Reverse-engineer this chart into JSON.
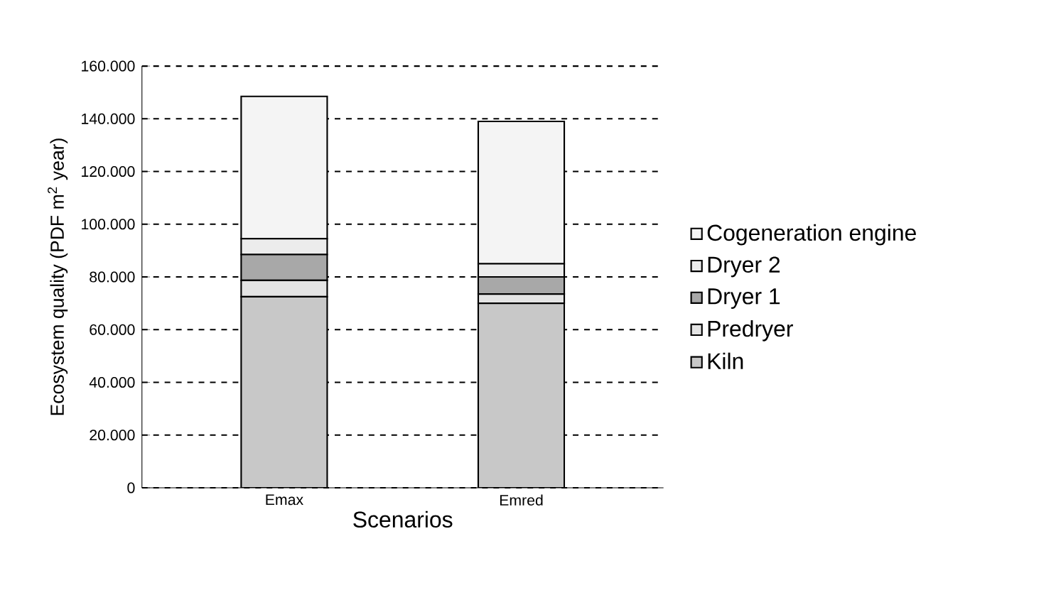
{
  "chart_data": {
    "type": "bar",
    "stacked": true,
    "xlabel": "Scenarios",
    "ylabel": "Ecosystem quality (PDF m$^{2}$ year)",
    "categories": [
      "Emax",
      "Emred"
    ],
    "series": [
      {
        "name": "Kiln",
        "color": "#c8c8c8",
        "values": [
          72500,
          70000
        ]
      },
      {
        "name": "Predryer",
        "color": "#e4e4e4",
        "values": [
          6200,
          3500
        ]
      },
      {
        "name": "Dryer 1",
        "color": "#a8a8a8",
        "values": [
          9800,
          6500
        ]
      },
      {
        "name": "Dryer 2",
        "color": "#ececec",
        "values": [
          6000,
          5000
        ]
      },
      {
        "name": "Cogeneration engine",
        "color": "#f4f4f4",
        "values": [
          54000,
          54000
        ]
      }
    ],
    "ylim": [
      0,
      160000
    ],
    "yticks": [
      {
        "value": 0,
        "label": "0"
      },
      {
        "value": 20000,
        "label": "20.000"
      },
      {
        "value": 40000,
        "label": "40.000"
      },
      {
        "value": 60000,
        "label": "60.000"
      },
      {
        "value": 80000,
        "label": "80.000"
      },
      {
        "value": 100000,
        "label": "100.000"
      },
      {
        "value": 120000,
        "label": "120.000"
      },
      {
        "value": 140000,
        "label": "140.000"
      },
      {
        "value": 160000,
        "label": "160.000"
      }
    ],
    "grid": "y",
    "legend": "right"
  }
}
